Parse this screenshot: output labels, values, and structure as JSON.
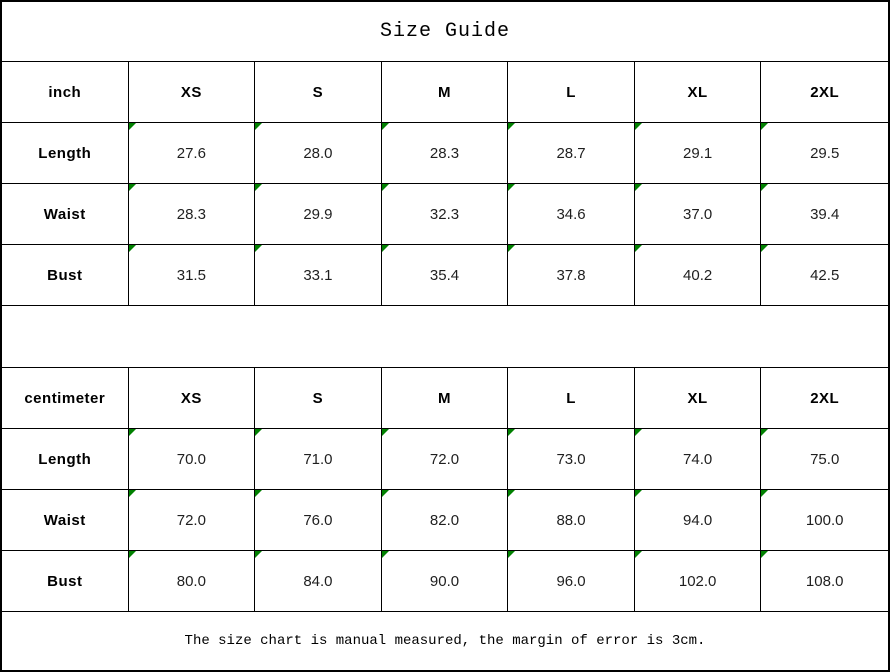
{
  "title": "Size Guide",
  "sizes": [
    "XS",
    "S",
    "M",
    "L",
    "XL",
    "2XL"
  ],
  "tables": [
    {
      "unit_label": "inch",
      "rows": [
        {
          "label": "Length",
          "values": [
            "27.6",
            "28.0",
            "28.3",
            "28.7",
            "29.1",
            "29.5"
          ]
        },
        {
          "label": "Waist",
          "values": [
            "28.3",
            "29.9",
            "32.3",
            "34.6",
            "37.0",
            "39.4"
          ]
        },
        {
          "label": "Bust",
          "values": [
            "31.5",
            "33.1",
            "35.4",
            "37.8",
            "40.2",
            "42.5"
          ]
        }
      ]
    },
    {
      "unit_label": "centimeter",
      "rows": [
        {
          "label": "Length",
          "values": [
            "70.0",
            "71.0",
            "72.0",
            "73.0",
            "74.0",
            "75.0"
          ]
        },
        {
          "label": "Waist",
          "values": [
            "72.0",
            "76.0",
            "82.0",
            "88.0",
            "94.0",
            "100.0"
          ]
        },
        {
          "label": "Bust",
          "values": [
            "80.0",
            "84.0",
            "90.0",
            "96.0",
            "102.0",
            "108.0"
          ]
        }
      ]
    }
  ],
  "footer_note": "The size chart is manual measured, the margin of error is 3cm.",
  "colors": {
    "border": "#000000",
    "background": "#ffffff",
    "text": "#000000",
    "flag_green": "#008000"
  },
  "chart_data": {
    "type": "table",
    "title": "Size Guide",
    "columns": [
      "",
      "XS",
      "S",
      "M",
      "L",
      "XL",
      "2XL"
    ],
    "sections": [
      {
        "unit": "inch",
        "rows": [
          [
            "Length",
            27.6,
            28.0,
            28.3,
            28.7,
            29.1,
            29.5
          ],
          [
            "Waist",
            28.3,
            29.9,
            32.3,
            34.6,
            37.0,
            39.4
          ],
          [
            "Bust",
            31.5,
            33.1,
            35.4,
            37.8,
            40.2,
            42.5
          ]
        ]
      },
      {
        "unit": "centimeter",
        "rows": [
          [
            "Length",
            70.0,
            71.0,
            72.0,
            73.0,
            74.0,
            75.0
          ],
          [
            "Waist",
            72.0,
            76.0,
            82.0,
            88.0,
            94.0,
            100.0
          ],
          [
            "Bust",
            80.0,
            84.0,
            90.0,
            96.0,
            102.0,
            108.0
          ]
        ]
      }
    ],
    "note": "The size chart is manual measured, the margin of error is 3cm."
  }
}
